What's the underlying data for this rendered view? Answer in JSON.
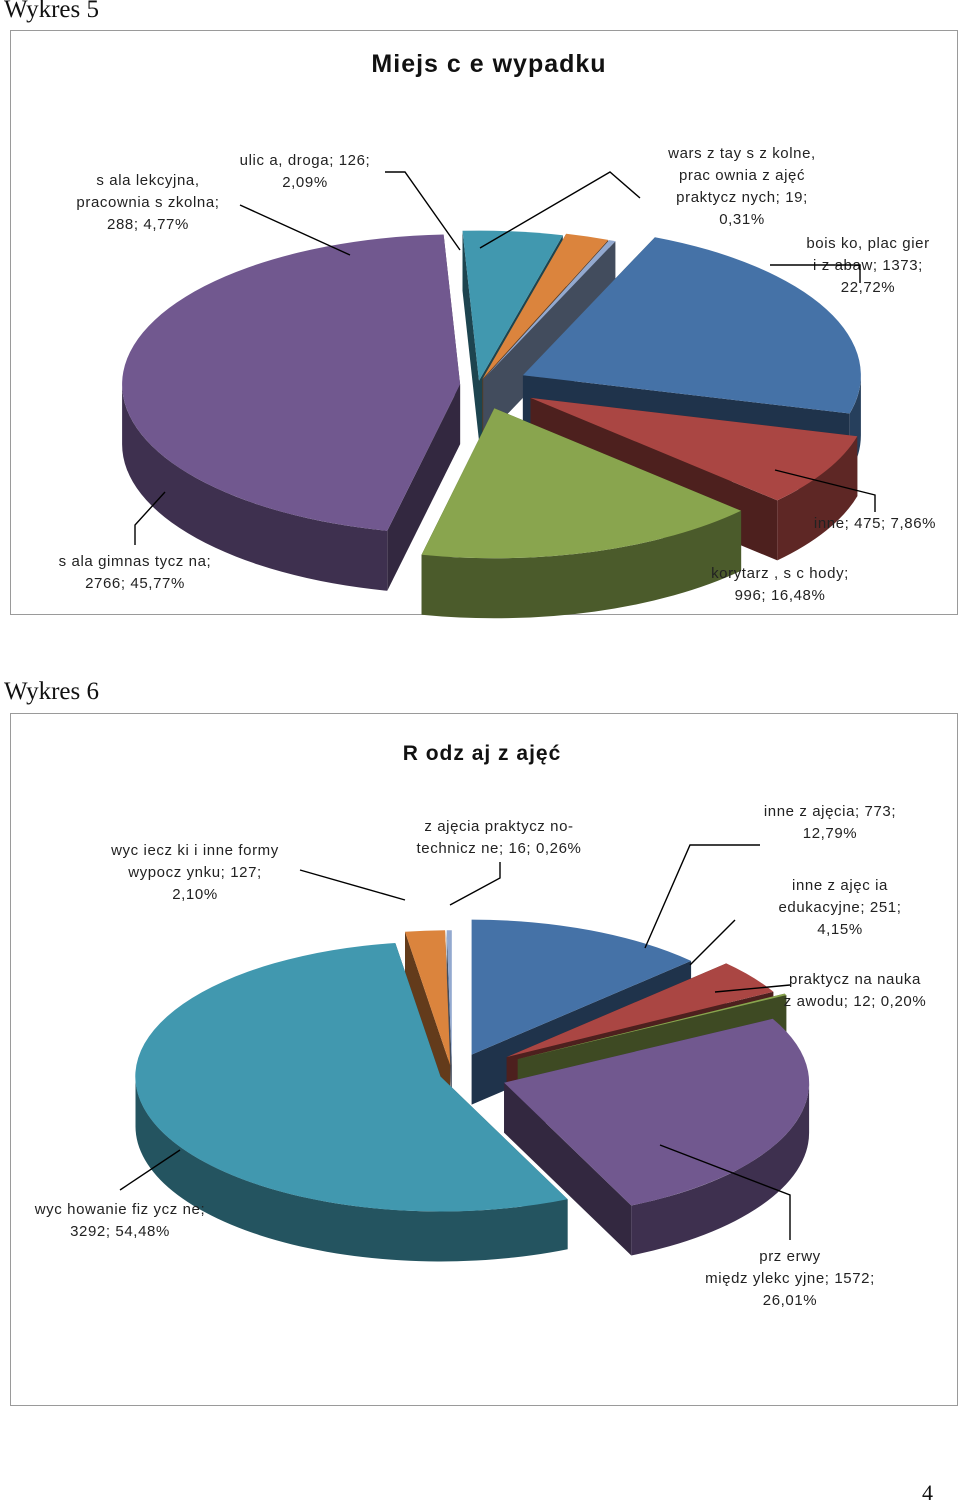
{
  "page": {
    "number": "4"
  },
  "chart_data": [
    {
      "type": "pie",
      "caption": "Wykres 5",
      "title": "Miejs c e wypadku",
      "show_legend": false,
      "three_d": true,
      "slices": [
        {
          "name": "bois ko, plac gier i z abaw",
          "value": 1373,
          "percent": "22,72%",
          "color": "#4572A7",
          "label_lines": [
            "bois ko, plac gier",
            "i z abaw; 1373;",
            "22,72%"
          ]
        },
        {
          "name": "inne",
          "value": 475,
          "percent": "7,86%",
          "color": "#AA4643",
          "label_lines": [
            "inne; 475; 7,86%"
          ]
        },
        {
          "name": "korytarz, s c hody",
          "value": 996,
          "percent": "16,48%",
          "color": "#89A54E",
          "label_lines": [
            "korytarz , s c hody;",
            "996; 16,48%"
          ]
        },
        {
          "name": "s ala gimnas tycz na",
          "value": 2766,
          "percent": "45,77%",
          "color": "#71588F",
          "label_lines": [
            "s ala gimnas tycz na;",
            "2766; 45,77%"
          ]
        },
        {
          "name": "s ala lekcyjna, pracownia s zkolna",
          "value": 288,
          "percent": "4,77%",
          "color": "#4198AF",
          "label_lines": [
            "s ala lekcyjna,",
            "pracownia s zkolna;",
            "288; 4,77%"
          ]
        },
        {
          "name": "ulica, droga",
          "value": 126,
          "percent": "2,09%",
          "color": "#DB843D",
          "label_lines": [
            "ulic a, droga; 126;",
            "2,09%"
          ]
        },
        {
          "name": "wars z tay s z kolne, prac ownia z ajęć praktycz nych",
          "value": 19,
          "percent": "0,31%",
          "color": "#93A9CF",
          "label_lines": [
            "wars z tay s z kolne,",
            "prac ownia z ajęć",
            "praktycz nych; 19;",
            "0,31%"
          ]
        }
      ]
    },
    {
      "type": "pie",
      "caption": "Wykres 6",
      "title": "R odz aj z ajęć",
      "show_legend": false,
      "three_d": true,
      "slices": [
        {
          "name": "inne z ajęcia",
          "value": 773,
          "percent": "12,79%",
          "color": "#4572A7",
          "label_lines": [
            "inne z ajęcia; 773;",
            "12,79%"
          ]
        },
        {
          "name": "inne z ajęc ia edukacyjne",
          "value": 251,
          "percent": "4,15%",
          "color": "#AA4643",
          "label_lines": [
            "inne z ajęc ia",
            "edukacyjne; 251;",
            "4,15%"
          ]
        },
        {
          "name": "praktycz na nauka z awodu",
          "value": 12,
          "percent": "0,20%",
          "color": "#89A54E",
          "label_lines": [
            "praktycz na nauka",
            "z awodu; 12; 0,20%"
          ]
        },
        {
          "name": "prz erwy międz ylekc yjne",
          "value": 1572,
          "percent": "26,01%",
          "color": "#71588F",
          "label_lines": [
            "prz erwy",
            "międz ylekc yjne; 1572;",
            "26,01%"
          ]
        },
        {
          "name": "wyc howanie fiz ycz ne",
          "value": 3292,
          "percent": "54,48%",
          "color": "#4198AF",
          "label_lines": [
            "wyc howanie fiz ycz ne;",
            "3292; 54,48%"
          ]
        },
        {
          "name": "wycieczki i inne formy wypocz ynku",
          "value": 127,
          "percent": "2,10%",
          "color": "#DB843D",
          "label_lines": [
            "wyc iecz ki i inne formy",
            "wypocz ynku; 127;",
            "2,10%"
          ]
        },
        {
          "name": "z ajęcia praktycz no-technicz ne",
          "value": 16,
          "percent": "0,26%",
          "color": "#93A9CF",
          "label_lines": [
            "z ajęcia praktycz no-",
            "technicz ne; 16; 0,26%"
          ]
        }
      ]
    }
  ]
}
